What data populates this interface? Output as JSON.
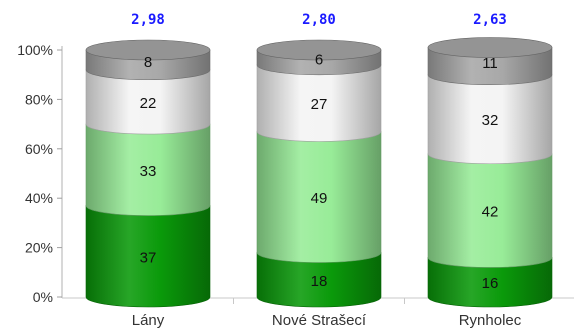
{
  "chart_data": {
    "type": "bar",
    "stacked": true,
    "percent": true,
    "categories": [
      "Lány",
      "Nové Strašecí",
      "Rynholec"
    ],
    "top_labels": [
      "2,98",
      "2,80",
      "2,63"
    ],
    "y_ticks": [
      "0%",
      "20%",
      "40%",
      "60%",
      "80%",
      "100%"
    ],
    "ylim": [
      0,
      100
    ],
    "series": [
      {
        "values": [
          37,
          18,
          16
        ],
        "color": "#0a9a0a"
      },
      {
        "values": [
          33,
          49,
          42
        ],
        "color": "#98ec98"
      },
      {
        "values": [
          22,
          27,
          32
        ],
        "color": "#f4f4f4"
      },
      {
        "values": [
          8,
          6,
          11
        ],
        "color": "#a8a8a8"
      }
    ],
    "title": "",
    "xlabel": "",
    "ylabel": "",
    "legend": "none",
    "grid": false
  }
}
